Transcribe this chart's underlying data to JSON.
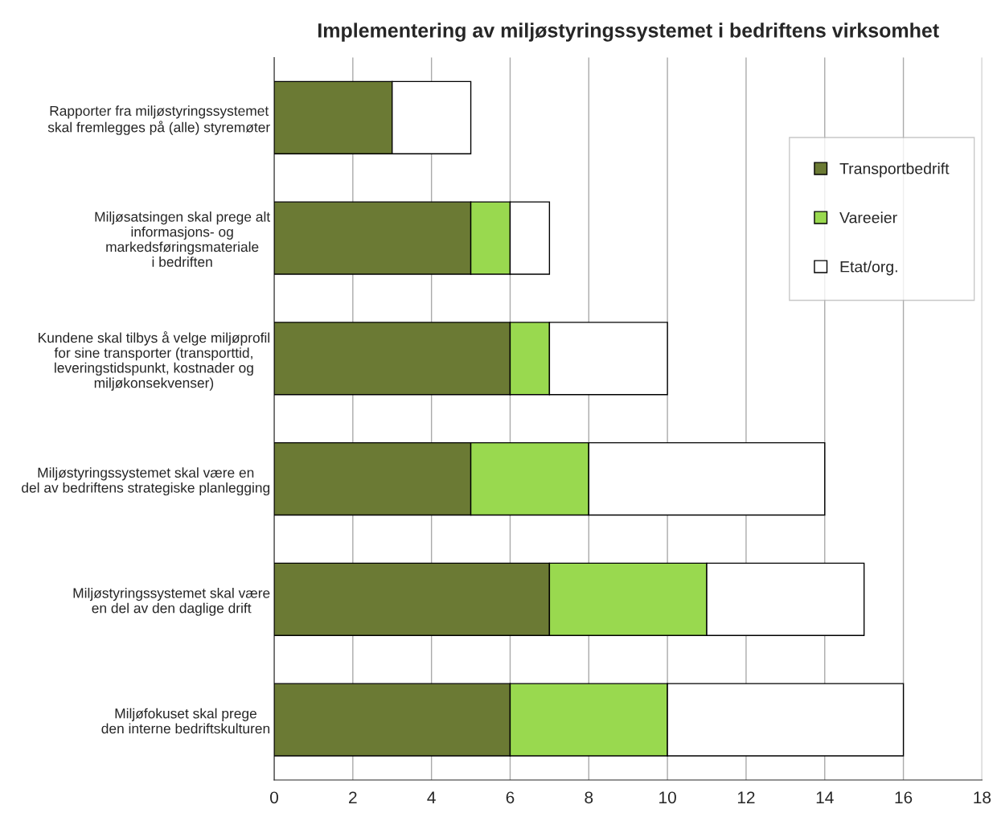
{
  "chart_data": {
    "type": "bar",
    "orientation": "horizontal",
    "stacked": true,
    "title": "Implementering av miljøstyringssystemet i bedriftens virksomhet",
    "categories": [
      "Rapporter fra miljøstyringssystemet\nskal fremlegges på (alle) styremøter",
      "Miljøsatsingen skal prege alt\ninformasjons- og\nmarkedsføringsmateriale\ni bedriften",
      "Kundene skal tilbys å velge miljøprofil\nfor sine transporter (transporttid,\nleveringstidspunkt, kostnader og\nmiljøkonsekvenser)",
      "Miljøstyringssystemet skal være en\ndel av bedriftens strategiske planlegging",
      "Miljøstyringssystemet skal være\nen del av den daglige drift",
      "Miljøfokuset skal prege\nden interne bedriftskulturen"
    ],
    "series": [
      {
        "name": "Transportbedrift",
        "color": "#6b7a34",
        "values": [
          3,
          5,
          6,
          5,
          7,
          6
        ]
      },
      {
        "name": "Vareeier",
        "color": "#99d94f",
        "values": [
          0,
          1,
          1,
          3,
          4,
          4
        ]
      },
      {
        "name": "Etat/org.",
        "color": "#ffffff",
        "values": [
          2,
          1,
          3,
          6,
          4,
          6
        ]
      }
    ],
    "xlim": [
      0,
      18
    ],
    "xticks": [
      0,
      2,
      4,
      6,
      8,
      10,
      12,
      14,
      16,
      18
    ],
    "grid": "x",
    "legend": "top right"
  }
}
